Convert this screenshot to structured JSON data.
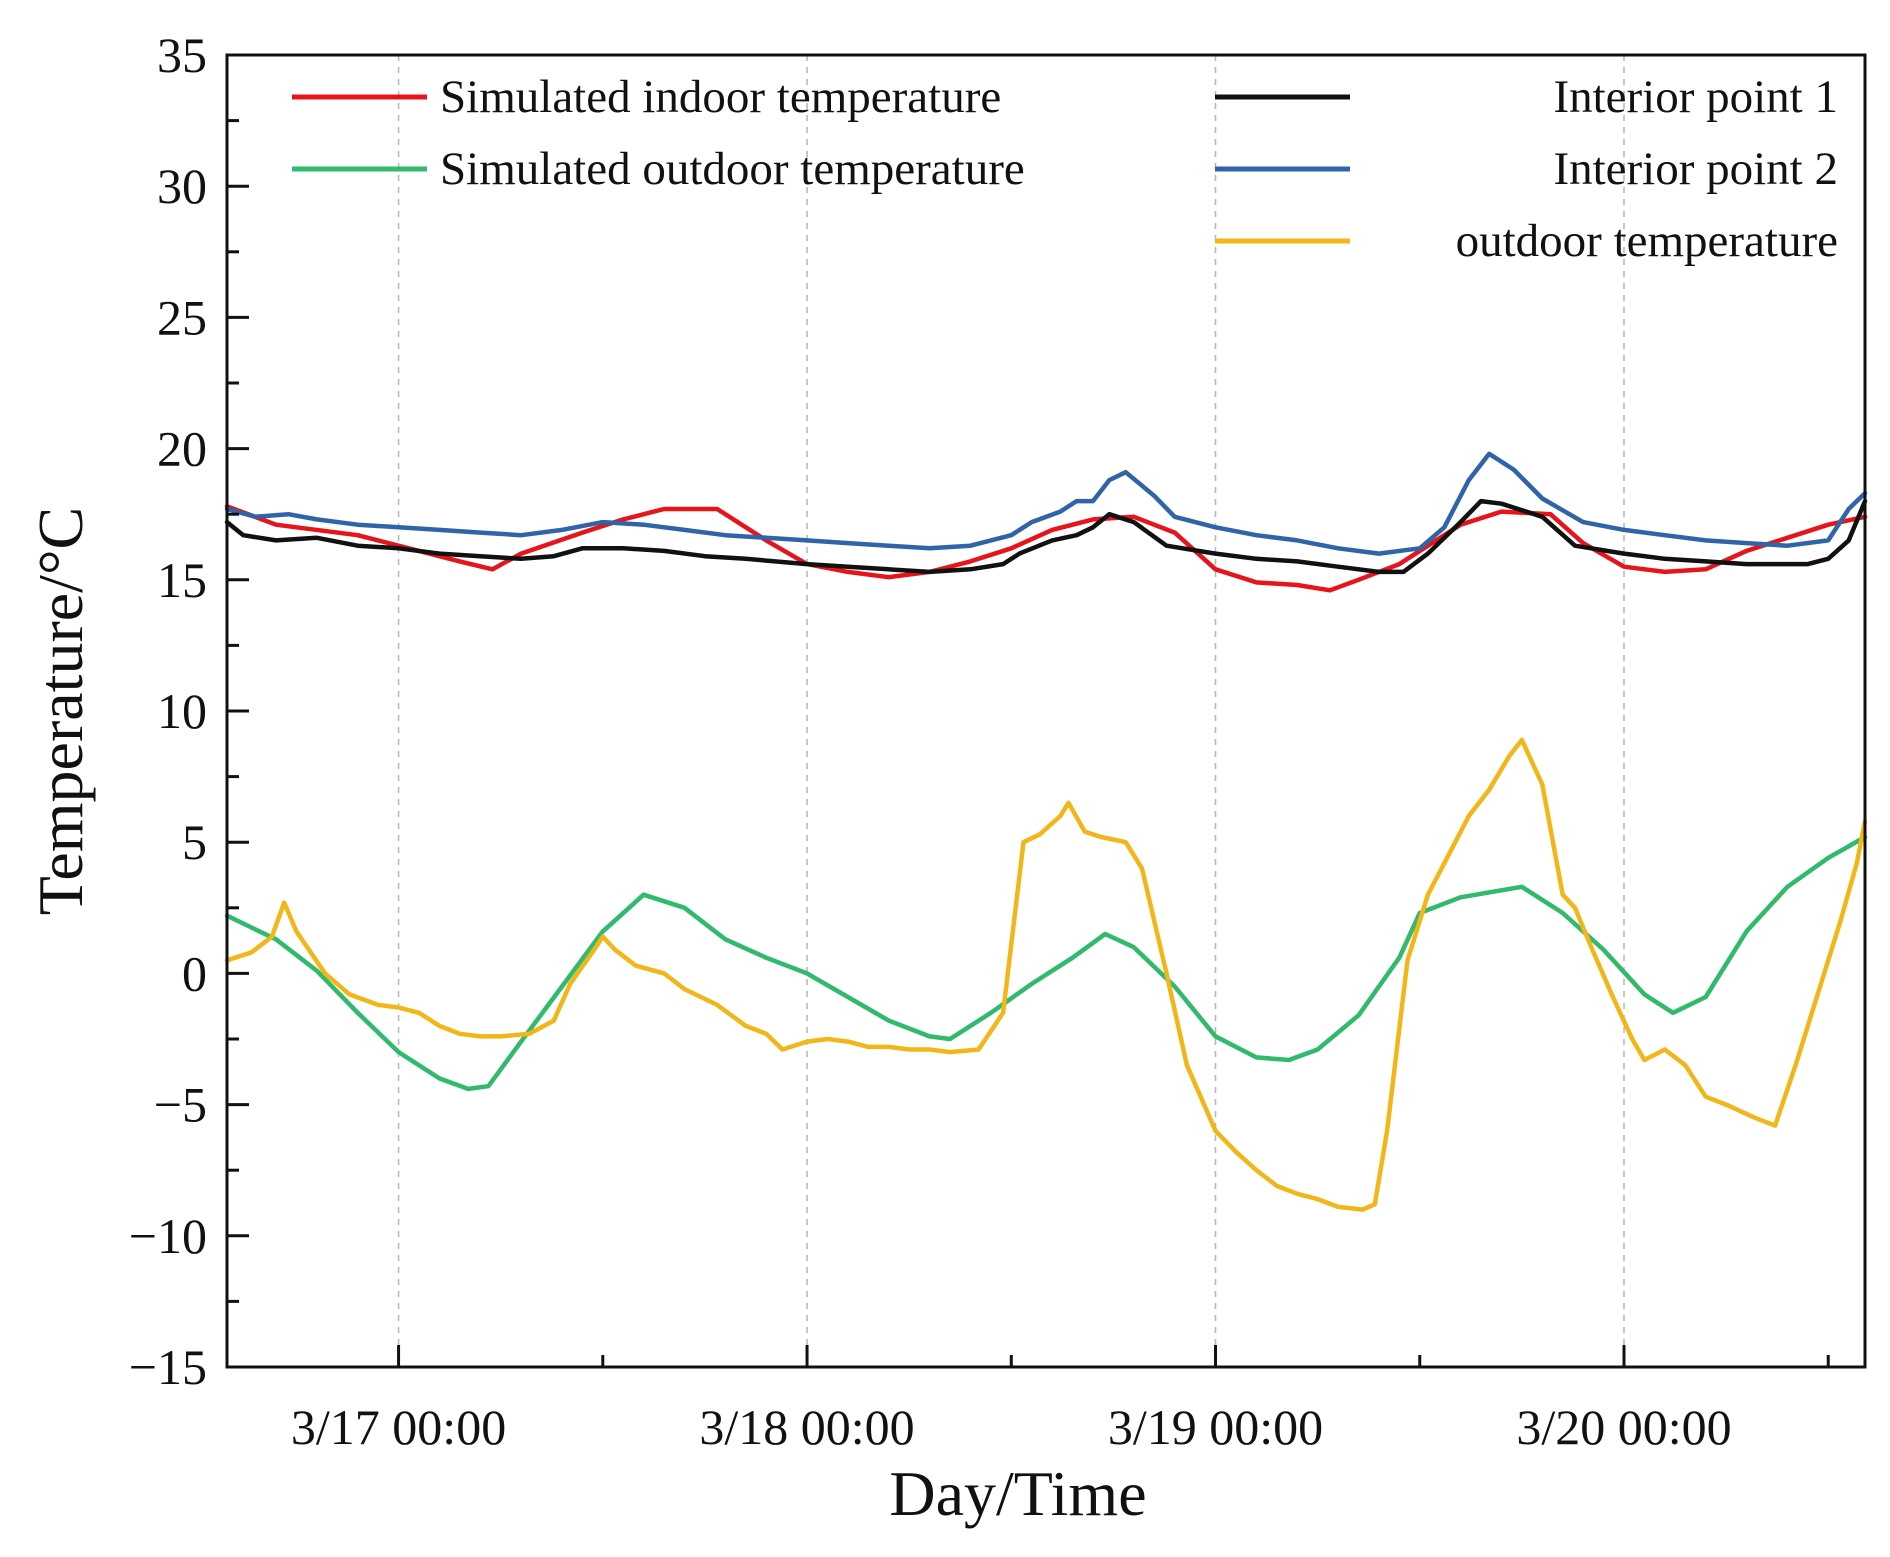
{
  "chart_data": {
    "type": "line",
    "title": "",
    "xlabel": "Day/Time",
    "ylabel": "Temperature/°C",
    "ylim": [
      -15,
      35
    ],
    "xlim": [
      -0.42,
      3.59
    ],
    "x_unit": "days since 3/17 00:00",
    "grid": "vertical dashed at major x ticks",
    "y_ticks": [
      35,
      30,
      25,
      20,
      15,
      10,
      5,
      0,
      -5,
      -10,
      -15
    ],
    "y_tick_labels": [
      "35",
      "30",
      "25",
      "20",
      "15",
      "10",
      "5",
      "0",
      "−5",
      "−10",
      "−15"
    ],
    "x_ticks": [
      0,
      1,
      2,
      3
    ],
    "x_tick_labels": [
      "3/17 00:00",
      "3/18 00:00",
      "3/19 00:00",
      "3/20 00:00"
    ],
    "legend_position": "top",
    "series": [
      {
        "name": "Simulated indoor temperature",
        "color": "#e8141b",
        "points": [
          [
            -0.42,
            17.8
          ],
          [
            -0.3,
            17.1
          ],
          [
            -0.1,
            16.7
          ],
          [
            0.05,
            16.1
          ],
          [
            0.15,
            15.7
          ],
          [
            0.23,
            15.4
          ],
          [
            0.3,
            16.0
          ],
          [
            0.45,
            16.8
          ],
          [
            0.55,
            17.3
          ],
          [
            0.65,
            17.7
          ],
          [
            0.78,
            17.7
          ],
          [
            0.9,
            16.5
          ],
          [
            1.0,
            15.6
          ],
          [
            1.1,
            15.3
          ],
          [
            1.2,
            15.1
          ],
          [
            1.3,
            15.3
          ],
          [
            1.4,
            15.7
          ],
          [
            1.5,
            16.2
          ],
          [
            1.6,
            16.9
          ],
          [
            1.7,
            17.3
          ],
          [
            1.8,
            17.4
          ],
          [
            1.9,
            16.8
          ],
          [
            2.0,
            15.4
          ],
          [
            2.1,
            14.9
          ],
          [
            2.2,
            14.8
          ],
          [
            2.28,
            14.6
          ],
          [
            2.35,
            15.0
          ],
          [
            2.45,
            15.6
          ],
          [
            2.52,
            16.3
          ],
          [
            2.6,
            17.1
          ],
          [
            2.7,
            17.6
          ],
          [
            2.82,
            17.5
          ],
          [
            2.9,
            16.4
          ],
          [
            3.0,
            15.5
          ],
          [
            3.1,
            15.3
          ],
          [
            3.2,
            15.4
          ],
          [
            3.3,
            16.1
          ],
          [
            3.4,
            16.6
          ],
          [
            3.5,
            17.1
          ],
          [
            3.59,
            17.4
          ]
        ]
      },
      {
        "name": "Simulated outdoor temperature",
        "color": "#2fba6c",
        "points": [
          [
            -0.42,
            2.2
          ],
          [
            -0.3,
            1.3
          ],
          [
            -0.2,
            0.1
          ],
          [
            -0.1,
            -1.5
          ],
          [
            0.0,
            -3.0
          ],
          [
            0.1,
            -4.0
          ],
          [
            0.17,
            -4.4
          ],
          [
            0.22,
            -4.3
          ],
          [
            0.3,
            -2.6
          ],
          [
            0.4,
            -0.5
          ],
          [
            0.5,
            1.6
          ],
          [
            0.6,
            3.0
          ],
          [
            0.7,
            2.5
          ],
          [
            0.8,
            1.3
          ],
          [
            0.9,
            0.6
          ],
          [
            1.0,
            0.0
          ],
          [
            1.1,
            -0.9
          ],
          [
            1.2,
            -1.8
          ],
          [
            1.3,
            -2.4
          ],
          [
            1.35,
            -2.5
          ],
          [
            1.45,
            -1.5
          ],
          [
            1.55,
            -0.4
          ],
          [
            1.65,
            0.6
          ],
          [
            1.73,
            1.5
          ],
          [
            1.8,
            1.0
          ],
          [
            1.9,
            -0.5
          ],
          [
            2.0,
            -2.4
          ],
          [
            2.1,
            -3.2
          ],
          [
            2.18,
            -3.3
          ],
          [
            2.25,
            -2.9
          ],
          [
            2.35,
            -1.6
          ],
          [
            2.45,
            0.6
          ],
          [
            2.5,
            2.3
          ],
          [
            2.6,
            2.9
          ],
          [
            2.75,
            3.3
          ],
          [
            2.85,
            2.3
          ],
          [
            2.95,
            0.9
          ],
          [
            3.05,
            -0.8
          ],
          [
            3.12,
            -1.5
          ],
          [
            3.2,
            -0.9
          ],
          [
            3.3,
            1.6
          ],
          [
            3.4,
            3.3
          ],
          [
            3.5,
            4.4
          ],
          [
            3.59,
            5.2
          ]
        ]
      },
      {
        "name": "Interior point 1",
        "color": "#111111",
        "points": [
          [
            -0.42,
            17.2
          ],
          [
            -0.38,
            16.7
          ],
          [
            -0.3,
            16.5
          ],
          [
            -0.2,
            16.6
          ],
          [
            -0.1,
            16.3
          ],
          [
            0.0,
            16.2
          ],
          [
            0.1,
            16.0
          ],
          [
            0.2,
            15.9
          ],
          [
            0.3,
            15.8
          ],
          [
            0.38,
            15.9
          ],
          [
            0.45,
            16.2
          ],
          [
            0.55,
            16.2
          ],
          [
            0.65,
            16.1
          ],
          [
            0.75,
            15.9
          ],
          [
            0.85,
            15.8
          ],
          [
            1.0,
            15.6
          ],
          [
            1.1,
            15.5
          ],
          [
            1.2,
            15.4
          ],
          [
            1.3,
            15.3
          ],
          [
            1.4,
            15.4
          ],
          [
            1.48,
            15.6
          ],
          [
            1.52,
            16.0
          ],
          [
            1.6,
            16.5
          ],
          [
            1.66,
            16.7
          ],
          [
            1.7,
            17.0
          ],
          [
            1.74,
            17.5
          ],
          [
            1.8,
            17.2
          ],
          [
            1.88,
            16.3
          ],
          [
            2.0,
            16.0
          ],
          [
            2.1,
            15.8
          ],
          [
            2.2,
            15.7
          ],
          [
            2.3,
            15.5
          ],
          [
            2.4,
            15.3
          ],
          [
            2.46,
            15.3
          ],
          [
            2.52,
            16.0
          ],
          [
            2.6,
            17.2
          ],
          [
            2.65,
            18.0
          ],
          [
            2.7,
            17.9
          ],
          [
            2.8,
            17.4
          ],
          [
            2.88,
            16.3
          ],
          [
            3.0,
            16.0
          ],
          [
            3.1,
            15.8
          ],
          [
            3.2,
            15.7
          ],
          [
            3.3,
            15.6
          ],
          [
            3.45,
            15.6
          ],
          [
            3.5,
            15.8
          ],
          [
            3.55,
            16.5
          ],
          [
            3.59,
            18.0
          ]
        ]
      },
      {
        "name": "Interior point 2",
        "color": "#2f64a8",
        "points": [
          [
            -0.42,
            17.7
          ],
          [
            -0.35,
            17.4
          ],
          [
            -0.27,
            17.5
          ],
          [
            -0.2,
            17.3
          ],
          [
            -0.1,
            17.1
          ],
          [
            0.0,
            17.0
          ],
          [
            0.1,
            16.9
          ],
          [
            0.2,
            16.8
          ],
          [
            0.3,
            16.7
          ],
          [
            0.4,
            16.9
          ],
          [
            0.5,
            17.2
          ],
          [
            0.6,
            17.1
          ],
          [
            0.7,
            16.9
          ],
          [
            0.8,
            16.7
          ],
          [
            0.9,
            16.6
          ],
          [
            1.0,
            16.5
          ],
          [
            1.1,
            16.4
          ],
          [
            1.2,
            16.3
          ],
          [
            1.3,
            16.2
          ],
          [
            1.4,
            16.3
          ],
          [
            1.5,
            16.7
          ],
          [
            1.55,
            17.2
          ],
          [
            1.62,
            17.6
          ],
          [
            1.66,
            18.0
          ],
          [
            1.7,
            18.0
          ],
          [
            1.74,
            18.8
          ],
          [
            1.78,
            19.1
          ],
          [
            1.85,
            18.2
          ],
          [
            1.9,
            17.4
          ],
          [
            2.0,
            17.0
          ],
          [
            2.1,
            16.7
          ],
          [
            2.2,
            16.5
          ],
          [
            2.3,
            16.2
          ],
          [
            2.4,
            16.0
          ],
          [
            2.5,
            16.2
          ],
          [
            2.56,
            17.0
          ],
          [
            2.62,
            18.8
          ],
          [
            2.67,
            19.8
          ],
          [
            2.73,
            19.2
          ],
          [
            2.8,
            18.1
          ],
          [
            2.9,
            17.2
          ],
          [
            3.0,
            16.9
          ],
          [
            3.1,
            16.7
          ],
          [
            3.2,
            16.5
          ],
          [
            3.3,
            16.4
          ],
          [
            3.4,
            16.3
          ],
          [
            3.5,
            16.5
          ],
          [
            3.55,
            17.7
          ],
          [
            3.59,
            18.3
          ]
        ]
      },
      {
        "name": "outdoor temperature",
        "color": "#f2b619",
        "points": [
          [
            -0.42,
            0.5
          ],
          [
            -0.36,
            0.8
          ],
          [
            -0.31,
            1.4
          ],
          [
            -0.28,
            2.7
          ],
          [
            -0.25,
            1.6
          ],
          [
            -0.18,
            0.0
          ],
          [
            -0.12,
            -0.8
          ],
          [
            -0.05,
            -1.2
          ],
          [
            0.0,
            -1.3
          ],
          [
            0.05,
            -1.5
          ],
          [
            0.1,
            -2.0
          ],
          [
            0.15,
            -2.3
          ],
          [
            0.2,
            -2.4
          ],
          [
            0.25,
            -2.4
          ],
          [
            0.32,
            -2.3
          ],
          [
            0.38,
            -1.8
          ],
          [
            0.42,
            -0.4
          ],
          [
            0.47,
            0.7
          ],
          [
            0.5,
            1.4
          ],
          [
            0.53,
            0.9
          ],
          [
            0.58,
            0.3
          ],
          [
            0.65,
            0.0
          ],
          [
            0.7,
            -0.6
          ],
          [
            0.78,
            -1.2
          ],
          [
            0.85,
            -2.0
          ],
          [
            0.9,
            -2.3
          ],
          [
            0.94,
            -2.9
          ],
          [
            1.0,
            -2.6
          ],
          [
            1.05,
            -2.5
          ],
          [
            1.1,
            -2.6
          ],
          [
            1.15,
            -2.8
          ],
          [
            1.2,
            -2.8
          ],
          [
            1.25,
            -2.9
          ],
          [
            1.3,
            -2.9
          ],
          [
            1.35,
            -3.0
          ],
          [
            1.42,
            -2.9
          ],
          [
            1.48,
            -1.5
          ],
          [
            1.53,
            5.0
          ],
          [
            1.57,
            5.3
          ],
          [
            1.62,
            6.0
          ],
          [
            1.64,
            6.5
          ],
          [
            1.68,
            5.4
          ],
          [
            1.72,
            5.2
          ],
          [
            1.78,
            5.0
          ],
          [
            1.82,
            4.0
          ],
          [
            1.88,
            0.0
          ],
          [
            1.93,
            -3.5
          ],
          [
            2.0,
            -6.0
          ],
          [
            2.05,
            -6.8
          ],
          [
            2.1,
            -7.5
          ],
          [
            2.15,
            -8.1
          ],
          [
            2.2,
            -8.4
          ],
          [
            2.25,
            -8.6
          ],
          [
            2.3,
            -8.9
          ],
          [
            2.36,
            -9.0
          ],
          [
            2.39,
            -8.8
          ],
          [
            2.42,
            -6.0
          ],
          [
            2.47,
            0.5
          ],
          [
            2.52,
            3.0
          ],
          [
            2.57,
            4.5
          ],
          [
            2.62,
            6.0
          ],
          [
            2.67,
            7.0
          ],
          [
            2.72,
            8.3
          ],
          [
            2.75,
            8.9
          ],
          [
            2.8,
            7.2
          ],
          [
            2.85,
            3.0
          ],
          [
            2.88,
            2.5
          ],
          [
            2.92,
            1.0
          ],
          [
            2.97,
            -0.8
          ],
          [
            3.02,
            -2.5
          ],
          [
            3.05,
            -3.3
          ],
          [
            3.1,
            -2.9
          ],
          [
            3.15,
            -3.5
          ],
          [
            3.2,
            -4.7
          ],
          [
            3.25,
            -5.0
          ],
          [
            3.32,
            -5.5
          ],
          [
            3.37,
            -5.8
          ],
          [
            3.42,
            -3.5
          ],
          [
            3.48,
            -0.5
          ],
          [
            3.53,
            2.0
          ],
          [
            3.57,
            4.2
          ],
          [
            3.59,
            5.8
          ]
        ]
      }
    ]
  }
}
